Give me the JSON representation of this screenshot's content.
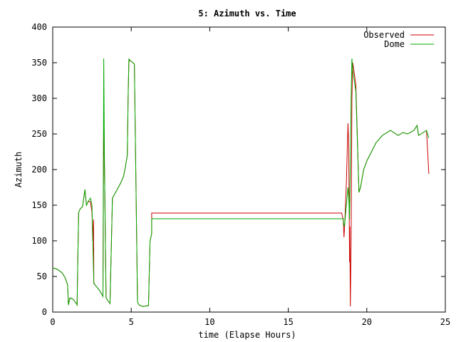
{
  "chart_data": {
    "type": "line",
    "title": "5: Azimuth vs. Time",
    "xlabel": "time (Elapse Hours)",
    "ylabel": "Azimuth",
    "xlim": [
      0,
      25
    ],
    "ylim": [
      0,
      400
    ],
    "xticks": [
      0,
      5,
      10,
      15,
      20,
      25
    ],
    "yticks": [
      0,
      50,
      100,
      150,
      200,
      250,
      300,
      350,
      400
    ],
    "grid": false,
    "legend": "top-right",
    "series": [
      {
        "name": "Observed",
        "color": "#cc0000",
        "x": [
          0,
          0.3,
          0.6,
          0.8,
          0.95,
          1.0,
          1.1,
          1.3,
          1.5,
          1.55,
          1.6,
          1.65,
          1.75,
          1.9,
          2.05,
          2.15,
          2.25,
          2.4,
          2.5,
          2.55,
          2.6,
          2.62,
          2.65,
          2.7,
          3.0,
          3.2,
          3.25,
          3.3,
          3.4,
          3.55,
          3.65,
          3.8,
          4.0,
          4.3,
          4.5,
          4.6,
          4.75,
          4.8,
          4.85,
          4.9,
          4.95,
          5.0,
          5.2,
          5.4,
          5.45,
          5.5,
          5.7,
          6.1,
          6.2,
          6.25,
          6.3,
          6.3,
          18.4,
          18.5,
          18.55,
          18.6,
          18.7,
          18.8,
          18.85,
          18.9,
          18.92,
          18.95,
          19.0,
          19.05,
          19.1,
          19.3,
          19.5,
          19.6,
          19.8,
          20.0,
          20.3,
          20.6,
          21.0,
          21.5,
          22.0,
          22.3,
          22.6,
          23.0,
          23.2,
          23.3,
          23.6,
          23.8,
          23.95
        ],
        "y": [
          62,
          60,
          55,
          48,
          38,
          10,
          20,
          18,
          12,
          10,
          80,
          140,
          145,
          148,
          172,
          150,
          155,
          155,
          140,
          100,
          130,
          40,
          40,
          38,
          30,
          22,
          275,
          200,
          20,
          15,
          12,
          160,
          168,
          180,
          190,
          200,
          220,
          300,
          352,
          354,
          352,
          352,
          348,
          14,
          12,
          10,
          8,
          9,
          100,
          105,
          110,
          139,
          139,
          130,
          105,
          125,
          180,
          265,
          230,
          70,
          120,
          8,
          100,
          300,
          350,
          320,
          168,
          175,
          200,
          212,
          225,
          238,
          248,
          255,
          248,
          252,
          250,
          255,
          262,
          248,
          252,
          255,
          194
        ]
      },
      {
        "name": "Dome",
        "color": "#00aa00",
        "x": [
          0,
          0.3,
          0.6,
          0.8,
          0.95,
          1.0,
          1.1,
          1.3,
          1.5,
          1.55,
          1.6,
          1.65,
          1.75,
          1.9,
          2.05,
          2.15,
          2.25,
          2.4,
          2.5,
          2.55,
          2.62,
          2.65,
          2.7,
          3.0,
          3.2,
          3.25,
          3.3,
          3.4,
          3.55,
          3.65,
          3.8,
          4.0,
          4.3,
          4.5,
          4.6,
          4.75,
          4.8,
          4.85,
          4.9,
          4.95,
          5.0,
          5.2,
          5.4,
          5.45,
          5.5,
          5.7,
          6.1,
          6.2,
          6.25,
          6.3,
          6.3,
          18.5,
          18.55,
          18.6,
          18.7,
          18.8,
          18.85,
          18.9,
          19.0,
          19.05,
          19.1,
          19.3,
          19.5,
          19.6,
          19.8,
          20.0,
          20.3,
          20.6,
          21.0,
          21.5,
          22.0,
          22.3,
          22.6,
          23.0,
          23.2,
          23.3,
          23.6,
          23.8,
          23.95
        ],
        "y": [
          62,
          60,
          55,
          48,
          38,
          10,
          20,
          18,
          12,
          10,
          80,
          140,
          145,
          148,
          172,
          150,
          155,
          160,
          150,
          100,
          40,
          40,
          38,
          30,
          22,
          356,
          200,
          20,
          15,
          12,
          160,
          168,
          180,
          190,
          200,
          220,
          300,
          355,
          354,
          352,
          352,
          348,
          14,
          12,
          10,
          8,
          9,
          100,
          105,
          110,
          131,
          131,
          120,
          125,
          150,
          175,
          160,
          130,
          300,
          356,
          340,
          310,
          168,
          175,
          200,
          212,
          225,
          238,
          248,
          255,
          248,
          252,
          250,
          255,
          262,
          248,
          252,
          255,
          244
        ]
      }
    ]
  }
}
